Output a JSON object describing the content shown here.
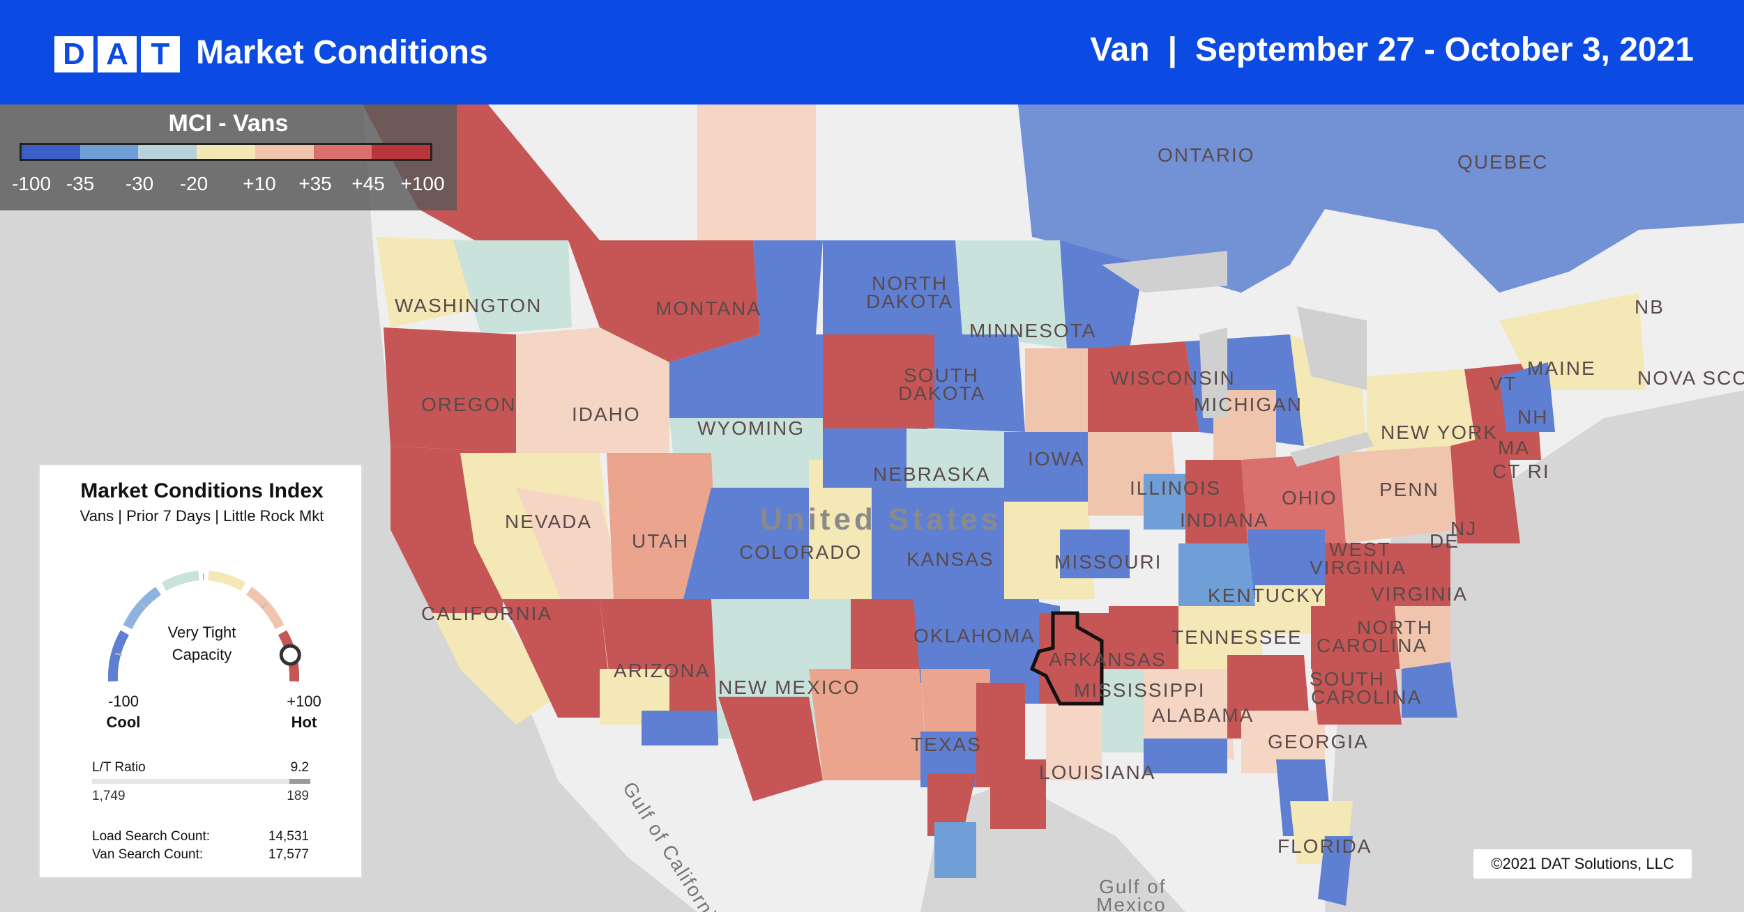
{
  "header": {
    "logo_letters": [
      "D",
      "A",
      "T"
    ],
    "title": "Market Conditions",
    "equipment": "Van",
    "separator": "|",
    "date_range": "September 27 - October 3, 2021"
  },
  "legend": {
    "title": "MCI - Vans",
    "colors": [
      "#3b5fc7",
      "#6f9fd6",
      "#b9d1d9",
      "#f3e7b4",
      "#f0c5ae",
      "#d9706e",
      "#b8353a"
    ],
    "ticks": [
      "-100",
      "-35",
      "-30",
      "-20",
      "+10",
      "+35",
      "+45",
      "+100"
    ]
  },
  "map": {
    "selected_market": "Little Rock",
    "labels": {
      "ontario": "ONTARIO",
      "quebec": "QUEBEC",
      "nb": "NB",
      "nova_scotia": "NOVA SCO",
      "washington": "WASHINGTON",
      "montana": "MONTANA",
      "north_dakota_1": "NORTH",
      "north_dakota_2": "DAKOTA",
      "minnesota": "MINNESOTA",
      "maine": "MAINE",
      "oregon": "OREGON",
      "idaho": "IDAHO",
      "south_dakota_1": "SOUTH",
      "south_dakota_2": "DAKOTA",
      "wisconsin": "WISCONSIN",
      "michigan": "MICHIGAN",
      "new_york": "NEW YORK",
      "vt": "VT",
      "nh": "NH",
      "ma": "MA",
      "ct_ri": "CT RI",
      "wyoming": "WYOMING",
      "iowa": "IOWA",
      "nebraska": "NEBRASKA",
      "illinois": "ILLINOIS",
      "ohio": "OHIO",
      "penn": "PENN",
      "nevada": "NEVADA",
      "united_states": "United States",
      "utah": "UTAH",
      "colorado": "COLORADO",
      "indiana": "INDIANA",
      "nj": "NJ",
      "de": "DE",
      "kansas": "KANSAS",
      "missouri": "MISSOURI",
      "west_virginia_1": "WEST",
      "west_virginia_2": "VIRGINIA",
      "kentucky": "KENTUCKY",
      "virginia": "VIRGINIA",
      "california": "CALIFORNIA",
      "tennessee": "TENNESSEE",
      "north_carolina_1": "NORTH",
      "north_carolina_2": "CAROLINA",
      "oklahoma": "OKLAHOMA",
      "arkansas": "ARKANSAS",
      "arizona": "ARIZONA",
      "new_mexico": "NEW MEXICO",
      "mississippi": "MISSISSIPPI",
      "south_carolina_1": "SOUTH",
      "south_carolina_2": "CAROLINA",
      "alabama": "ALABAMA",
      "georgia": "GEORGIA",
      "texas": "TEXAS",
      "louisiana": "LOUISIANA",
      "florida": "FLORIDA",
      "gulf_mexico_1": "Gulf of",
      "gulf_mexico_2": "Mexico",
      "gulf_california": "Gulf of California"
    }
  },
  "mci_panel": {
    "title": "Market Conditions Index",
    "subtitle": "Vans | Prior 7 Days | Little Rock Mkt",
    "capacity_line1": "Very Tight",
    "capacity_line2": "Capacity",
    "min_value": "-100",
    "max_value": "+100",
    "min_label": "Cool",
    "max_label": "Hot",
    "gauge_level": 0.97,
    "lt_ratio_label": "L/T Ratio",
    "lt_ratio_value": "9.2",
    "loads": "1,749",
    "trucks": "189",
    "load_search_label": "Load Search Count:",
    "load_search_value": "14,531",
    "van_search_label": "Van Search Count:",
    "van_search_value": "17,577"
  },
  "copyright": "©2021 DAT Solutions, LLC"
}
